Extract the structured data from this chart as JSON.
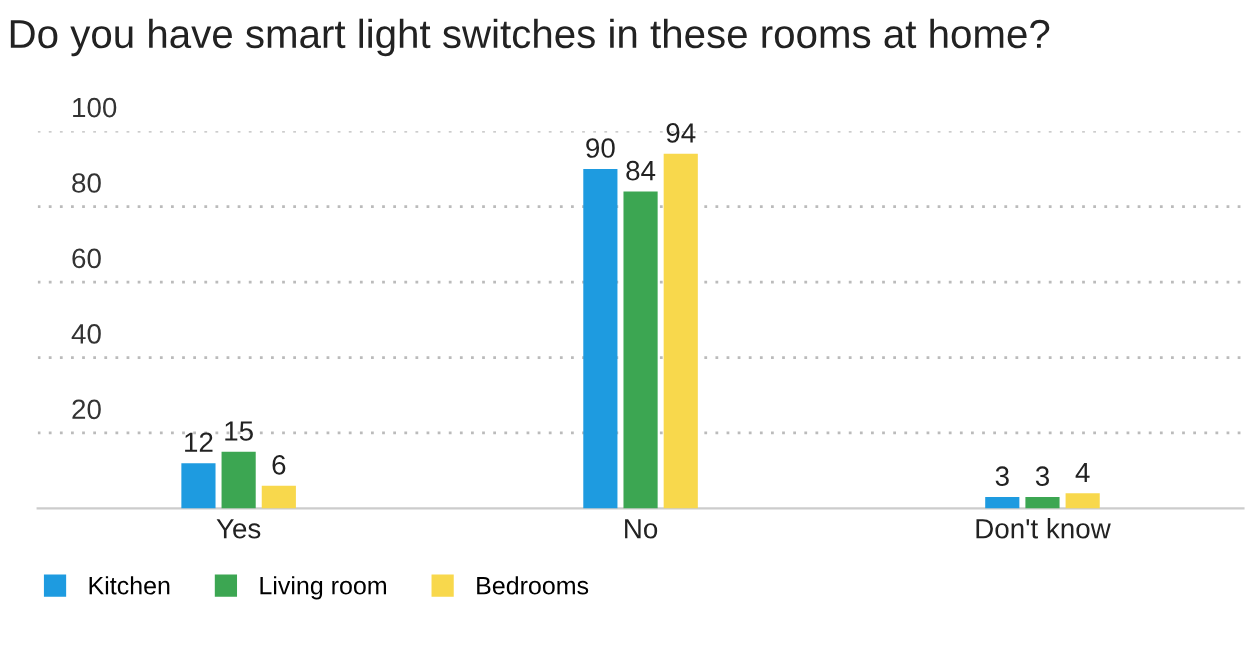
{
  "chart_data": {
    "type": "bar",
    "title": "Do you have smart light switches in these rooms at home?",
    "categories": [
      "Yes",
      "No",
      "Don't know"
    ],
    "series": [
      {
        "name": "Kitchen",
        "color": "#1e9be0",
        "values": [
          12,
          90,
          3
        ]
      },
      {
        "name": "Living room",
        "color": "#3ca652",
        "values": [
          15,
          84,
          3
        ]
      },
      {
        "name": "Bedrooms",
        "color": "#f8d84c",
        "values": [
          6,
          94,
          4
        ]
      }
    ],
    "ylim": [
      0,
      100
    ],
    "yticks": [
      20,
      40,
      60,
      80,
      100
    ],
    "grid": "y",
    "legend": "bottom left",
    "data_labels": true
  }
}
